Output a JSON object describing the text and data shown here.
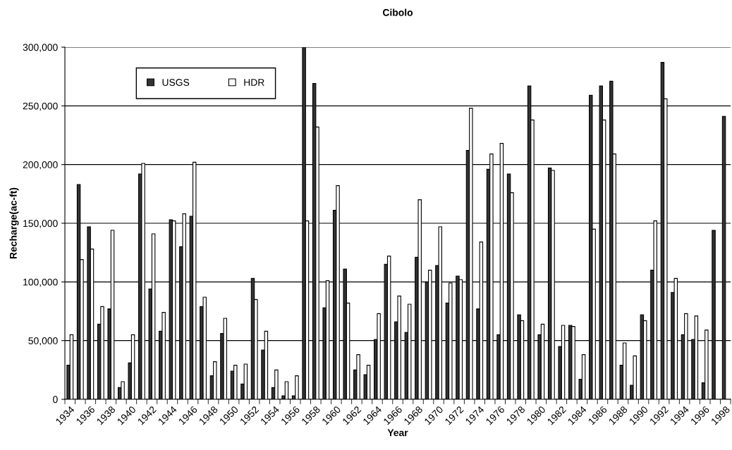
{
  "chart_data": {
    "type": "bar",
    "title": "Cibolo",
    "xlabel": "Year",
    "ylabel": "Recharge(ac-ft)",
    "categories": [
      "1934",
      null,
      "1936",
      null,
      "1938",
      null,
      "1940",
      null,
      "1942",
      null,
      "1944",
      null,
      "1946",
      null,
      "1948",
      null,
      "1950",
      null,
      "1952",
      null,
      "1954",
      null,
      "1956",
      null,
      "1958",
      null,
      "1960",
      null,
      "1962",
      null,
      "1964",
      null,
      "1966",
      null,
      "1968",
      null,
      "1970",
      null,
      "1972",
      null,
      "1974",
      null,
      "1976",
      null,
      "1978",
      null,
      "1980",
      null,
      "1982",
      null,
      "1984",
      null,
      "1986",
      null,
      "1988",
      null,
      "1990",
      null,
      "1992",
      null,
      "1994",
      null,
      "1996",
      null,
      "1998"
    ],
    "series": [
      {
        "name": "USGS",
        "color": "#333333",
        "values": [
          29000,
          183000,
          147000,
          64000,
          77000,
          10000,
          31000,
          192000,
          94000,
          58000,
          153000,
          130000,
          156000,
          79000,
          20000,
          56000,
          24000,
          13000,
          103000,
          42000,
          10000,
          3000,
          3000,
          300000,
          269000,
          78000,
          161000,
          111000,
          25000,
          21000,
          51000,
          115000,
          66000,
          57000,
          121000,
          100000,
          114000,
          82000,
          105000,
          212000,
          77000,
          196000,
          55000,
          192000,
          72000,
          267000,
          55000,
          197000,
          45000,
          63000,
          17000,
          259000,
          267000,
          271000,
          29000,
          12000,
          72000,
          110000,
          287000,
          91000,
          55000,
          51000,
          14000,
          144000,
          241000
        ]
      },
      {
        "name": "HDR",
        "color": "#ffffff",
        "values": [
          55000,
          119000,
          128000,
          79000,
          144000,
          15000,
          55000,
          201000,
          141000,
          74000,
          152000,
          158000,
          202000,
          87000,
          32000,
          69000,
          29000,
          30000,
          85000,
          58000,
          25000,
          15000,
          20000,
          152000,
          232000,
          101000,
          182000,
          82000,
          38000,
          29000,
          73000,
          122000,
          88000,
          81000,
          170000,
          110000,
          147000,
          99000,
          102000,
          248000,
          134000,
          209000,
          218000,
          176000,
          67000,
          238000,
          64000,
          195000,
          63000,
          62000,
          38000,
          145000,
          238000,
          209000,
          48000,
          37000,
          67000,
          152000,
          256000,
          103000,
          73000,
          71000,
          59000,
          null,
          null
        ]
      }
    ],
    "ylim": [
      0,
      300000
    ],
    "yticks": [
      {
        "value": 0,
        "label": "0"
      },
      {
        "value": 50000,
        "label": "50,000"
      },
      {
        "value": 100000,
        "label": "100,000"
      },
      {
        "value": 150000,
        "label": "150,000"
      },
      {
        "value": 200000,
        "label": "200,000"
      },
      {
        "value": 250000,
        "label": "250,000"
      },
      {
        "value": 300000,
        "label": "300,000"
      }
    ],
    "grid": "y",
    "legend": "top left"
  }
}
